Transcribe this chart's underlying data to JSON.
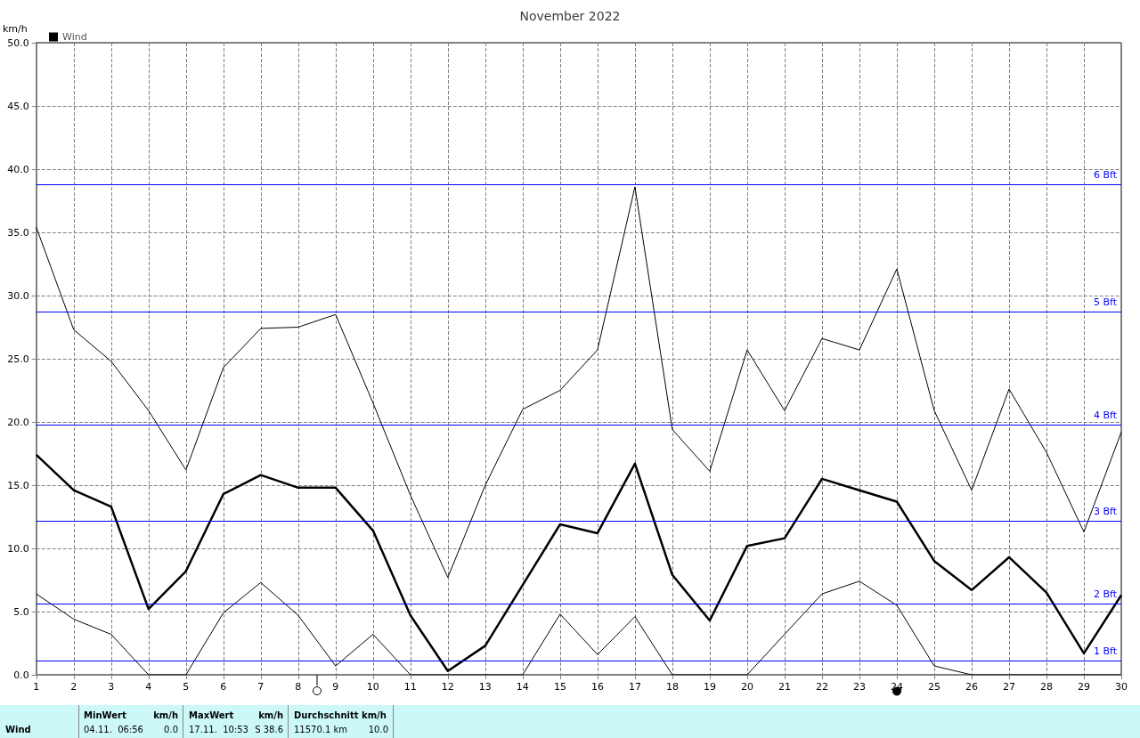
{
  "chart_data": {
    "type": "line",
    "title": "November 2022",
    "ylabel": "km/h",
    "x": [
      1,
      2,
      3,
      4,
      5,
      6,
      7,
      8,
      9,
      10,
      11,
      12,
      13,
      14,
      15,
      16,
      17,
      18,
      19,
      20,
      21,
      22,
      23,
      24,
      25,
      26,
      27,
      28,
      29,
      30
    ],
    "series": [
      {
        "color": "#000000",
        "values": [
          35.4,
          27.3,
          24.8,
          20.9,
          16.2,
          24.3,
          27.4,
          27.5,
          28.5,
          21.5,
          14.2,
          7.7,
          15.0,
          21.0,
          22.5,
          25.7,
          38.6,
          19.4,
          16.1,
          25.7,
          20.9,
          26.6,
          25.7,
          32.1,
          20.9,
          14.6,
          22.6,
          17.6,
          11.3,
          19.2
        ]
      },
      {
        "name": "Wind",
        "color": "#000000",
        "values": [
          17.4,
          14.6,
          13.3,
          5.2,
          8.2,
          14.3,
          15.8,
          14.8,
          14.8,
          11.4,
          4.7,
          0.3,
          2.3,
          7.1,
          11.9,
          11.2,
          16.7,
          7.9,
          4.3,
          10.2,
          10.8,
          15.5,
          14.6,
          13.7,
          9.0,
          6.7,
          9.3,
          6.5,
          1.7,
          6.3
        ]
      },
      {
        "color": "#000000",
        "values": [
          6.4,
          4.4,
          3.2,
          0,
          0,
          4.9,
          7.3,
          4.7,
          0.7,
          3.2,
          0,
          0,
          0,
          0,
          4.8,
          1.6,
          4.6,
          0,
          0,
          0,
          3.2,
          6.4,
          7.4,
          5.5,
          0.7,
          0,
          0,
          0,
          0,
          0
        ]
      }
    ],
    "xlim": [
      1,
      30
    ],
    "xticks": [
      1,
      2,
      3,
      4,
      5,
      6,
      7,
      8,
      9,
      10,
      11,
      12,
      13,
      14,
      15,
      16,
      17,
      18,
      19,
      20,
      21,
      22,
      23,
      24,
      25,
      26,
      27,
      28,
      29,
      30
    ],
    "ylim": [
      0,
      50
    ],
    "yticks": [
      {
        "value": 0,
        "label": "0.0"
      },
      {
        "value": 5,
        "label": "5.0"
      },
      {
        "value": 10,
        "label": "10.0"
      },
      {
        "value": 15,
        "label": "15.0"
      },
      {
        "value": 20,
        "label": "20.0"
      },
      {
        "value": 25,
        "label": "25.0"
      },
      {
        "value": 30,
        "label": "30.0"
      },
      {
        "value": 35,
        "label": "35.0"
      },
      {
        "value": 40,
        "label": "40.0"
      },
      {
        "value": 45,
        "label": "45.0"
      },
      {
        "value": 50,
        "label": "50.0"
      }
    ],
    "ref_lines": [
      {
        "axis": "y",
        "value": 1.1,
        "label": "1 Bft",
        "color": "#0000ff"
      },
      {
        "axis": "y",
        "value": 5.6,
        "label": "2 Bft",
        "color": "#0000ff"
      },
      {
        "axis": "y",
        "value": 12.2,
        "label": "3 Bft",
        "color": "#0000ff"
      },
      {
        "axis": "y",
        "value": 19.8,
        "label": "4 Bft",
        "color": "#0000ff"
      },
      {
        "axis": "y",
        "value": 28.7,
        "label": "5 Bft",
        "color": "#0000ff"
      },
      {
        "axis": "y",
        "value": 38.8,
        "label": "6 Bft",
        "color": "#0000ff"
      }
    ],
    "annotations": [
      "Wind",
      "MinWert",
      "km/h",
      "04.11.  06:56",
      "0.0",
      "MaxWert",
      "km/h",
      "17.11.  10:53",
      "S 38.6",
      "Durchschnitt km/h",
      "11570.1 km",
      "10.0"
    ],
    "grid": true,
    "legend": "top left",
    "marker": "none",
    "line_style": "solid"
  }
}
